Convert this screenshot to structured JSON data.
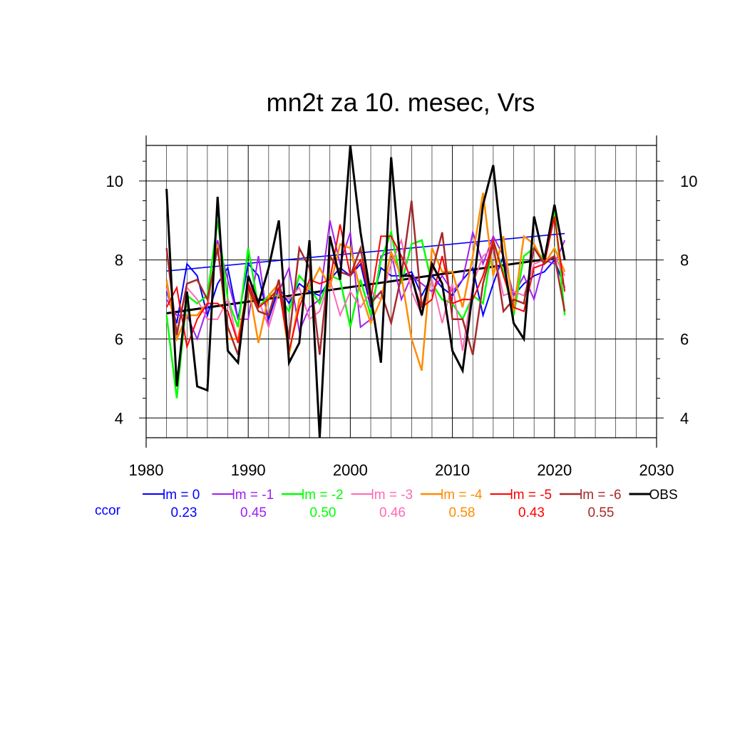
{
  "chart_data": {
    "type": "line",
    "title": "mn2t za 10. mesec, Vrs",
    "xlabel": "",
    "ylabel": "",
    "xlim": [
      1980,
      2030
    ],
    "ylim": [
      3.5,
      10.9
    ],
    "x_ticks": [
      1980,
      1990,
      2000,
      2010,
      2020,
      2030
    ],
    "y_ticks": [
      4,
      6,
      8,
      10
    ],
    "x_tick_labels": [
      "1980",
      "1990",
      "2000",
      "2010",
      "2020",
      "2030"
    ],
    "y_tick_labels": [
      "4",
      "6",
      "8",
      "10"
    ],
    "grid": true,
    "legend_position": "bottom",
    "x": [
      1982,
      1983,
      1984,
      1985,
      1986,
      1987,
      1988,
      1989,
      1990,
      1991,
      1992,
      1993,
      1994,
      1995,
      1996,
      1997,
      1998,
      1999,
      2000,
      2001,
      2002,
      2003,
      2004,
      2005,
      2006,
      2007,
      2008,
      2009,
      2010,
      2011,
      2012,
      2013,
      2014,
      2015,
      2016,
      2017,
      2018,
      2019,
      2020,
      2021
    ],
    "series": [
      {
        "name": "lm = 0",
        "color": "#0000ff",
        "width": 2,
        "values": [
          7.2,
          6.4,
          7.9,
          7.6,
          6.6,
          7.4,
          7.8,
          6.5,
          7.9,
          7.6,
          6.5,
          7.3,
          6.9,
          7.4,
          7.2,
          7.1,
          7.5,
          7.8,
          7.6,
          7.9,
          6.8,
          7.8,
          7.6,
          7.6,
          7.7,
          7.1,
          7.6,
          7.3,
          7.1,
          7.5,
          7.8,
          6.6,
          7.4,
          8.1,
          7.1,
          7.4,
          7.6,
          7.7,
          8.0,
          7.3
        ]
      },
      {
        "name": "lm = -1",
        "color": "#a020f0",
        "width": 2,
        "values": [
          7.0,
          6.6,
          6.6,
          6.0,
          6.8,
          8.5,
          7.5,
          6.5,
          6.5,
          8.1,
          6.3,
          7.2,
          7.8,
          6.2,
          6.8,
          7.0,
          9.0,
          7.9,
          8.7,
          6.3,
          6.5,
          8.1,
          8.2,
          7.0,
          7.6,
          7.4,
          7.2,
          7.6,
          7.2,
          7.5,
          8.7,
          7.9,
          8.6,
          8.1,
          7.1,
          7.6,
          7.0,
          8.0,
          7.9,
          8.5
        ]
      },
      {
        "name": "lm = -2",
        "color": "#00ff00",
        "width": 2.5,
        "values": [
          6.6,
          4.5,
          7.1,
          6.9,
          7.1,
          9.0,
          7.0,
          6.3,
          8.3,
          6.8,
          7.1,
          7.1,
          6.7,
          7.6,
          7.3,
          6.9,
          7.6,
          7.5,
          6.3,
          7.5,
          6.6,
          8.0,
          8.7,
          7.4,
          8.4,
          8.5,
          7.4,
          7.0,
          6.9,
          6.5,
          7.1,
          6.9,
          8.5,
          7.7,
          6.6,
          8.1,
          8.3,
          8.0,
          9.3,
          6.6
        ]
      },
      {
        "name": "lm = -3",
        "color": "#ff69b4",
        "width": 2,
        "values": [
          7.3,
          6.2,
          7.3,
          7.0,
          6.5,
          6.5,
          7.0,
          5.9,
          7.4,
          7.0,
          6.3,
          7.2,
          7.0,
          7.3,
          6.5,
          6.7,
          7.5,
          6.6,
          7.2,
          6.8,
          7.2,
          7.0,
          7.9,
          8.5,
          7.2,
          6.6,
          7.5,
          6.4,
          7.4,
          5.7,
          7.4,
          8.1,
          8.3,
          7.1,
          7.2,
          7.1,
          7.9,
          8.0,
          8.1,
          7.6
        ]
      },
      {
        "name": "lm = -4",
        "color": "#ff8c00",
        "width": 2.5,
        "values": [
          7.5,
          6.0,
          6.6,
          6.6,
          6.9,
          8.4,
          6.0,
          6.0,
          7.4,
          5.9,
          7.1,
          7.4,
          5.6,
          7.0,
          7.3,
          7.8,
          7.3,
          8.4,
          8.3,
          7.2,
          6.4,
          7.0,
          8.2,
          7.6,
          6.0,
          5.2,
          8.3,
          7.7,
          7.7,
          6.8,
          8.1,
          9.7,
          7.6,
          8.6,
          6.7,
          8.6,
          8.4,
          7.9,
          8.3,
          7.7
        ]
      },
      {
        "name": "lm = -5",
        "color": "#ff0000",
        "width": 2,
        "values": [
          6.8,
          7.3,
          5.8,
          6.5,
          6.9,
          6.9,
          6.7,
          5.9,
          7.4,
          6.8,
          7.0,
          7.3,
          5.7,
          6.8,
          7.5,
          7.4,
          7.5,
          8.9,
          7.6,
          8.0,
          7.0,
          8.6,
          8.6,
          8.1,
          7.5,
          6.8,
          7.0,
          8.1,
          6.9,
          7.0,
          7.0,
          7.6,
          8.5,
          7.6,
          6.8,
          6.7,
          7.8,
          7.9,
          9.1,
          7.2
        ]
      },
      {
        "name": "lm = -6",
        "color": "#a52a2a",
        "width": 2.5,
        "values": [
          8.3,
          6.1,
          7.4,
          7.5,
          7.0,
          8.3,
          6.3,
          5.6,
          7.3,
          6.7,
          6.6,
          7.5,
          6.0,
          8.3,
          7.8,
          5.6,
          8.1,
          7.7,
          7.6,
          8.3,
          6.9,
          7.2,
          6.4,
          7.6,
          9.5,
          6.8,
          7.7,
          8.7,
          6.5,
          6.5,
          5.6,
          7.4,
          8.4,
          6.7,
          7.0,
          6.9,
          8.3,
          7.9,
          8.1,
          6.7
        ]
      },
      {
        "name": "OBS",
        "color": "#000000",
        "width": 3,
        "values": [
          9.8,
          4.8,
          7.2,
          4.8,
          4.7,
          9.6,
          5.7,
          5.4,
          7.6,
          6.9,
          7.8,
          9.0,
          5.4,
          5.9,
          8.5,
          3.5,
          8.6,
          7.5,
          10.9,
          8.7,
          7.1,
          5.4,
          10.6,
          7.6,
          7.6,
          6.6,
          7.9,
          7.4,
          5.7,
          5.2,
          7.2,
          9.4,
          10.4,
          8.0,
          6.4,
          6.0,
          9.1,
          8.0,
          9.4,
          8.0
        ]
      }
    ],
    "trend_lines": [
      {
        "series": "lm = 0",
        "color": "#0000ff",
        "x": [
          1982,
          2021
        ],
        "y": [
          7.72,
          8.67
        ]
      },
      {
        "series": "OBS",
        "color": "#000000",
        "x": [
          1982,
          2020
        ],
        "y": [
          6.65,
          8.05
        ]
      }
    ],
    "ccor": {
      "label": "ccor",
      "label_color": "#0000ff",
      "values": [
        "0.23",
        "0.45",
        "0.50",
        "0.46",
        "0.58",
        "0.43",
        "0.55"
      ]
    }
  }
}
